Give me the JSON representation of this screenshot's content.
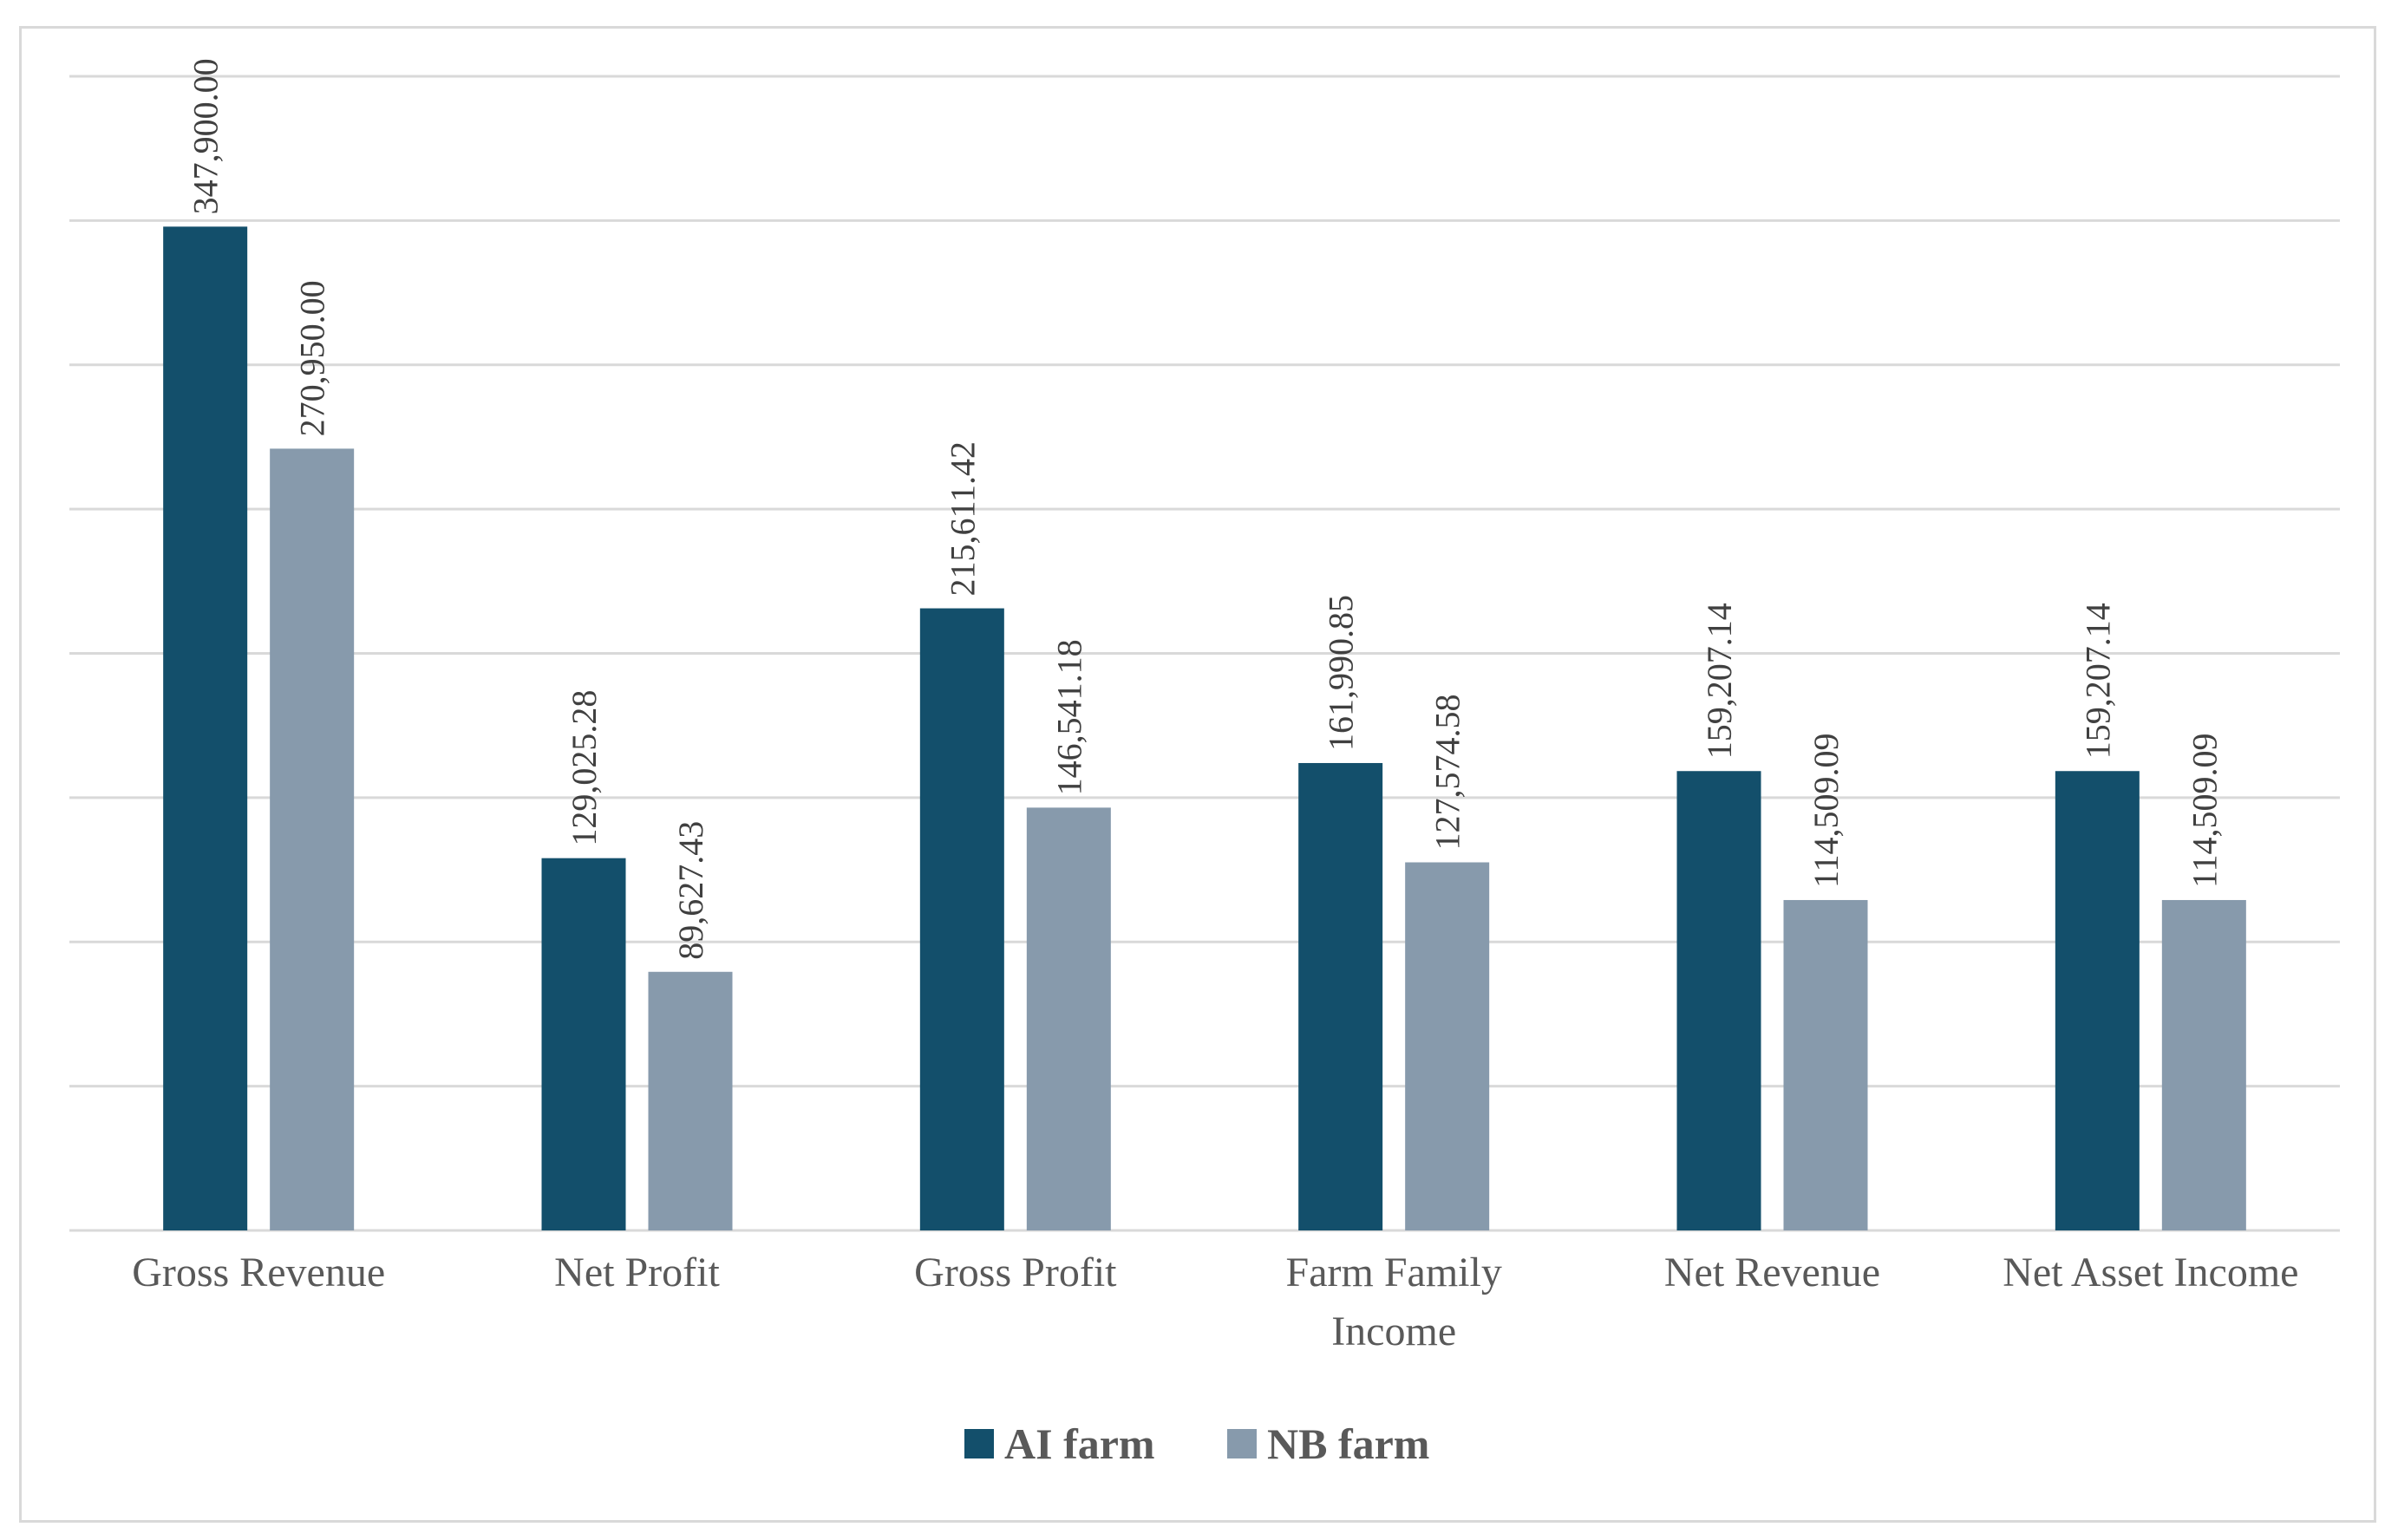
{
  "chart_data": {
    "type": "bar",
    "categories": [
      [
        "Gross Revenue"
      ],
      [
        "Net Profit"
      ],
      [
        "Gross Profit"
      ],
      [
        "Farm Family",
        "Income"
      ],
      [
        "Net Revenue"
      ],
      [
        "Net Asset Income"
      ]
    ],
    "series": [
      {
        "name": "AI farm",
        "color": "#134f6b",
        "values": [
          347900.0,
          129025.28,
          215611.42,
          161990.85,
          159207.14,
          159207.14
        ],
        "labels": [
          "347,900.00",
          "129,025.28",
          "215,611.42",
          "161,990.85",
          "159,207.14",
          "159,207.14"
        ]
      },
      {
        "name": "NB farm",
        "color": "#879aac",
        "values": [
          270950.0,
          89627.43,
          146541.18,
          127574.58,
          114509.09,
          114509.09
        ],
        "labels": [
          "270,950.00",
          "89,627.43",
          "146,541.18",
          "127,574.58",
          "114,509.09",
          "114,509.09"
        ]
      }
    ],
    "ylim": [
      0,
      400000
    ],
    "gridlines": [
      0,
      50000,
      100000,
      150000,
      200000,
      250000,
      300000,
      350000,
      400000
    ],
    "y_tick_labels_shown": false,
    "grid": true,
    "legend_position": "bottom-center"
  }
}
